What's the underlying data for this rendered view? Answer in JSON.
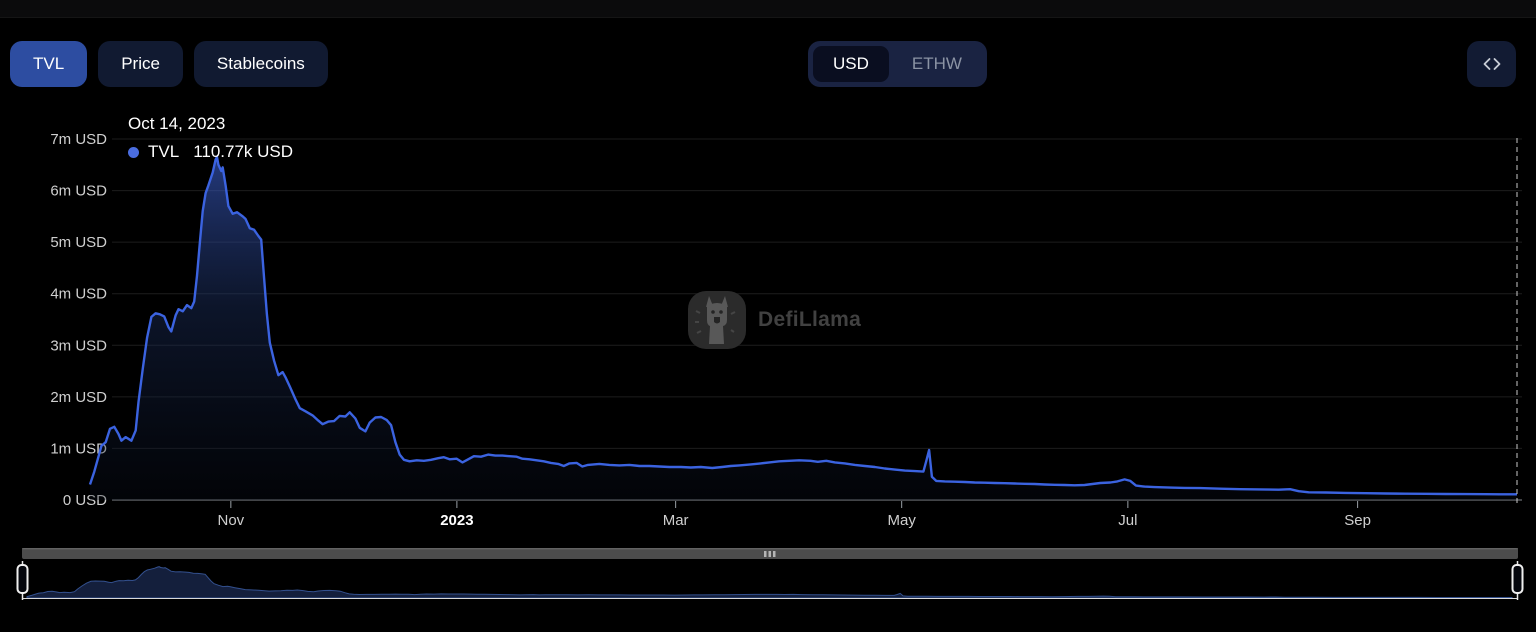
{
  "toolbar": {
    "tabs": [
      {
        "label": "TVL",
        "active": true
      },
      {
        "label": "Price",
        "active": false
      },
      {
        "label": "Stablecoins",
        "active": false
      }
    ],
    "denomination": [
      {
        "label": "USD",
        "active": true
      },
      {
        "label": "ETHW",
        "active": false
      }
    ],
    "embed_icon": "code-icon"
  },
  "tooltip": {
    "date": "Oct 14, 2023",
    "series": "TVL",
    "value": "110.77k USD",
    "dot_color": "#4a6de0"
  },
  "watermark": {
    "text": "DefiLlama"
  },
  "colors": {
    "active_tab": "#2d4da1",
    "line": "#3b63e0",
    "grid": "#1d1d1d",
    "axis": "#84888e",
    "tick_label": "#cfcfcf",
    "crosshair": "#c9c9c9",
    "minimap_fill": "#141f3c",
    "minimap_stroke": "#33508e"
  },
  "chart_data": {
    "type": "area",
    "title": "TVL",
    "ylabel": "USD",
    "x_start": "Sep 24, 2022",
    "x_end": "Oct 14, 2023",
    "ylim_usd": [
      0,
      7000000
    ],
    "grid": true,
    "y_ticks": [
      "0 USD",
      "1m USD",
      "2m USD",
      "3m USD",
      "4m USD",
      "5m USD",
      "6m USD",
      "7m USD"
    ],
    "x_ticks": [
      {
        "label": "Nov",
        "t": 0.0987,
        "bold": false
      },
      {
        "label": "2023",
        "t": 0.2571,
        "bold": true
      },
      {
        "label": "Mar",
        "t": 0.4104,
        "bold": false
      },
      {
        "label": "May",
        "t": 0.5688,
        "bold": false
      },
      {
        "label": "Jul",
        "t": 0.7273,
        "bold": false
      },
      {
        "label": "Sep",
        "t": 0.8883,
        "bold": false
      }
    ],
    "latest": {
      "date": "Oct 14, 2023",
      "tvl": "110.77k USD"
    },
    "crosshair_t": 1.0,
    "series": [
      {
        "name": "TVL",
        "color": "#3b63e0",
        "unit": "millions USD",
        "points": [
          [
            0,
            0.3
          ],
          [
            0.003,
            0.55
          ],
          [
            0.006,
            0.85
          ],
          [
            0.008,
            1.05
          ],
          [
            0.011,
            1.12
          ],
          [
            0.014,
            1.38
          ],
          [
            0.017,
            1.42
          ],
          [
            0.02,
            1.28
          ],
          [
            0.022,
            1.15
          ],
          [
            0.025,
            1.22
          ],
          [
            0.029,
            1.15
          ],
          [
            0.032,
            1.35
          ],
          [
            0.034,
            1.9
          ],
          [
            0.037,
            2.55
          ],
          [
            0.04,
            3.15
          ],
          [
            0.043,
            3.55
          ],
          [
            0.046,
            3.62
          ],
          [
            0.049,
            3.6
          ],
          [
            0.052,
            3.56
          ],
          [
            0.055,
            3.35
          ],
          [
            0.057,
            3.27
          ],
          [
            0.06,
            3.58
          ],
          [
            0.062,
            3.7
          ],
          [
            0.065,
            3.66
          ],
          [
            0.068,
            3.78
          ],
          [
            0.071,
            3.72
          ],
          [
            0.073,
            3.85
          ],
          [
            0.075,
            4.35
          ],
          [
            0.077,
            5.0
          ],
          [
            0.079,
            5.6
          ],
          [
            0.081,
            5.95
          ],
          [
            0.083,
            6.1
          ],
          [
            0.086,
            6.35
          ],
          [
            0.088,
            6.6
          ],
          [
            0.089,
            6.65
          ],
          [
            0.09,
            6.5
          ],
          [
            0.092,
            6.38
          ],
          [
            0.093,
            6.45
          ],
          [
            0.095,
            6.1
          ],
          [
            0.097,
            5.7
          ],
          [
            0.1,
            5.55
          ],
          [
            0.103,
            5.58
          ],
          [
            0.107,
            5.5
          ],
          [
            0.109,
            5.45
          ],
          [
            0.112,
            5.27
          ],
          [
            0.115,
            5.24
          ],
          [
            0.118,
            5.12
          ],
          [
            0.12,
            5.05
          ],
          [
            0.122,
            4.3
          ],
          [
            0.124,
            3.6
          ],
          [
            0.126,
            3.05
          ],
          [
            0.129,
            2.7
          ],
          [
            0.132,
            2.42
          ],
          [
            0.135,
            2.48
          ],
          [
            0.137,
            2.38
          ],
          [
            0.14,
            2.2
          ],
          [
            0.144,
            1.95
          ],
          [
            0.147,
            1.78
          ],
          [
            0.151,
            1.72
          ],
          [
            0.156,
            1.64
          ],
          [
            0.16,
            1.54
          ],
          [
            0.163,
            1.47
          ],
          [
            0.167,
            1.52
          ],
          [
            0.171,
            1.53
          ],
          [
            0.175,
            1.63
          ],
          [
            0.179,
            1.62
          ],
          [
            0.182,
            1.7
          ],
          [
            0.186,
            1.58
          ],
          [
            0.189,
            1.4
          ],
          [
            0.193,
            1.33
          ],
          [
            0.196,
            1.5
          ],
          [
            0.2,
            1.6
          ],
          [
            0.204,
            1.61
          ],
          [
            0.208,
            1.55
          ],
          [
            0.211,
            1.45
          ],
          [
            0.214,
            1.12
          ],
          [
            0.217,
            0.88
          ],
          [
            0.22,
            0.78
          ],
          [
            0.224,
            0.75
          ],
          [
            0.229,
            0.77
          ],
          [
            0.234,
            0.76
          ],
          [
            0.239,
            0.78
          ],
          [
            0.244,
            0.81
          ],
          [
            0.248,
            0.83
          ],
          [
            0.252,
            0.79
          ],
          [
            0.257,
            0.8
          ],
          [
            0.261,
            0.73
          ],
          [
            0.265,
            0.79
          ],
          [
            0.269,
            0.85
          ],
          [
            0.274,
            0.84
          ],
          [
            0.279,
            0.88
          ],
          [
            0.284,
            0.86
          ],
          [
            0.289,
            0.86
          ],
          [
            0.294,
            0.85
          ],
          [
            0.299,
            0.84
          ],
          [
            0.303,
            0.8
          ],
          [
            0.308,
            0.79
          ],
          [
            0.313,
            0.77
          ],
          [
            0.318,
            0.75
          ],
          [
            0.323,
            0.72
          ],
          [
            0.328,
            0.7
          ],
          [
            0.332,
            0.66
          ],
          [
            0.336,
            0.71
          ],
          [
            0.341,
            0.72
          ],
          [
            0.345,
            0.65
          ],
          [
            0.349,
            0.68
          ],
          [
            0.357,
            0.7
          ],
          [
            0.364,
            0.68
          ],
          [
            0.371,
            0.67
          ],
          [
            0.378,
            0.68
          ],
          [
            0.385,
            0.66
          ],
          [
            0.392,
            0.66
          ],
          [
            0.399,
            0.65
          ],
          [
            0.406,
            0.64
          ],
          [
            0.414,
            0.64
          ],
          [
            0.421,
            0.63
          ],
          [
            0.428,
            0.64
          ],
          [
            0.436,
            0.62
          ],
          [
            0.443,
            0.64
          ],
          [
            0.449,
            0.66
          ],
          [
            0.455,
            0.67
          ],
          [
            0.463,
            0.69
          ],
          [
            0.47,
            0.71
          ],
          [
            0.476,
            0.73
          ],
          [
            0.483,
            0.75
          ],
          [
            0.49,
            0.76
          ],
          [
            0.497,
            0.77
          ],
          [
            0.505,
            0.76
          ],
          [
            0.51,
            0.74
          ],
          [
            0.516,
            0.76
          ],
          [
            0.522,
            0.73
          ],
          [
            0.529,
            0.71
          ],
          [
            0.536,
            0.68
          ],
          [
            0.543,
            0.66
          ],
          [
            0.55,
            0.64
          ],
          [
            0.557,
            0.61
          ],
          [
            0.564,
            0.59
          ],
          [
            0.571,
            0.57
          ],
          [
            0.578,
            0.56
          ],
          [
            0.584,
            0.55
          ],
          [
            0.586,
            0.75
          ],
          [
            0.588,
            0.97
          ],
          [
            0.59,
            0.45
          ],
          [
            0.593,
            0.37
          ],
          [
            0.599,
            0.36
          ],
          [
            0.606,
            0.355
          ],
          [
            0.613,
            0.35
          ],
          [
            0.62,
            0.34
          ],
          [
            0.627,
            0.335
          ],
          [
            0.634,
            0.33
          ],
          [
            0.641,
            0.325
          ],
          [
            0.648,
            0.32
          ],
          [
            0.655,
            0.315
          ],
          [
            0.662,
            0.31
          ],
          [
            0.669,
            0.3
          ],
          [
            0.676,
            0.295
          ],
          [
            0.683,
            0.29
          ],
          [
            0.69,
            0.285
          ],
          [
            0.697,
            0.29
          ],
          [
            0.708,
            0.33
          ],
          [
            0.715,
            0.34
          ],
          [
            0.72,
            0.36
          ],
          [
            0.725,
            0.4
          ],
          [
            0.729,
            0.37
          ],
          [
            0.733,
            0.28
          ],
          [
            0.739,
            0.26
          ],
          [
            0.746,
            0.25
          ],
          [
            0.757,
            0.24
          ],
          [
            0.767,
            0.235
          ],
          [
            0.778,
            0.23
          ],
          [
            0.792,
            0.22
          ],
          [
            0.806,
            0.21
          ],
          [
            0.82,
            0.205
          ],
          [
            0.833,
            0.2
          ],
          [
            0.841,
            0.21
          ],
          [
            0.847,
            0.17
          ],
          [
            0.854,
            0.15
          ],
          [
            0.866,
            0.145
          ],
          [
            0.88,
            0.138
          ],
          [
            0.894,
            0.132
          ],
          [
            0.908,
            0.127
          ],
          [
            0.922,
            0.122
          ],
          [
            0.936,
            0.12
          ],
          [
            0.95,
            0.117
          ],
          [
            0.964,
            0.115
          ],
          [
            0.978,
            0.112
          ],
          [
            0.988,
            0.11
          ],
          [
            0.995,
            0.11
          ],
          [
            1,
            0.111
          ]
        ]
      }
    ]
  }
}
